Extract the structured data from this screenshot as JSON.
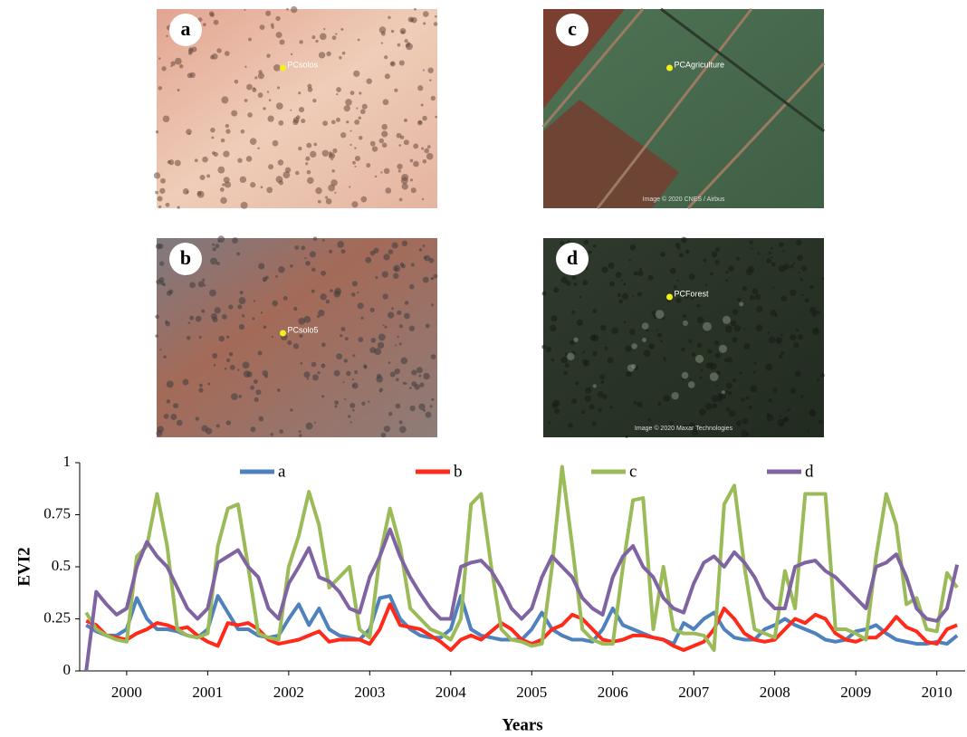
{
  "panels": [
    {
      "label": "a",
      "pin": "PCsolos"
    },
    {
      "label": "c",
      "pin": "PCAgriculture",
      "credit": "Image © 2020 CNES / Airbus"
    },
    {
      "label": "b",
      "pin": "PCsolo5"
    },
    {
      "label": "d",
      "pin": "PCForest",
      "credit": "Image © 2020 Maxar Technologies"
    }
  ],
  "chart_data": {
    "type": "line",
    "xlabel": "Years",
    "ylabel": "EVI2",
    "x": [
      1999.5,
      1999.625,
      1999.75,
      1999.875,
      2000,
      2000.125,
      2000.25,
      2000.375,
      2000.5,
      2000.625,
      2000.75,
      2000.875,
      2001,
      2001.125,
      2001.25,
      2001.375,
      2001.5,
      2001.625,
      2001.75,
      2001.875,
      2002,
      2002.125,
      2002.25,
      2002.375,
      2002.5,
      2002.625,
      2002.75,
      2002.875,
      2003,
      2003.125,
      2003.25,
      2003.375,
      2003.5,
      2003.625,
      2003.75,
      2003.875,
      2004,
      2004.125,
      2004.25,
      2004.375,
      2004.5,
      2004.625,
      2004.75,
      2004.875,
      2005,
      2005.125,
      2005.25,
      2005.375,
      2005.5,
      2005.625,
      2005.75,
      2005.875,
      2006,
      2006.125,
      2006.25,
      2006.375,
      2006.5,
      2006.625,
      2006.75,
      2006.875,
      2007,
      2007.125,
      2007.25,
      2007.375,
      2007.5,
      2007.625,
      2007.75,
      2007.875,
      2008,
      2008.125,
      2008.25,
      2008.375,
      2008.5,
      2008.625,
      2008.75,
      2008.875,
      2009,
      2009.125,
      2009.25,
      2009.375,
      2009.5,
      2009.625,
      2009.75,
      2009.875,
      2010,
      2010.125,
      2010.25
    ],
    "series": [
      {
        "name": "a",
        "color": "#4f81bd",
        "values": [
          0.22,
          0.19,
          0.17,
          0.17,
          0.2,
          0.35,
          0.25,
          0.2,
          0.2,
          0.19,
          0.17,
          0.16,
          0.2,
          0.36,
          0.28,
          0.2,
          0.2,
          0.17,
          0.16,
          0.17,
          0.25,
          0.32,
          0.22,
          0.3,
          0.2,
          0.17,
          0.16,
          0.15,
          0.2,
          0.35,
          0.36,
          0.25,
          0.2,
          0.17,
          0.16,
          0.16,
          0.2,
          0.36,
          0.2,
          0.17,
          0.16,
          0.15,
          0.15,
          0.15,
          0.2,
          0.28,
          0.2,
          0.17,
          0.15,
          0.15,
          0.14,
          0.2,
          0.3,
          0.22,
          0.2,
          0.18,
          0.16,
          0.15,
          0.13,
          0.23,
          0.2,
          0.25,
          0.28,
          0.2,
          0.16,
          0.15,
          0.15,
          0.2,
          0.22,
          0.25,
          0.22,
          0.2,
          0.18,
          0.15,
          0.14,
          0.15,
          0.19,
          0.2,
          0.22,
          0.18,
          0.15,
          0.14,
          0.13,
          0.13,
          0.14,
          0.13,
          0.17
        ]
      },
      {
        "name": "b",
        "color": "#ff2a1a",
        "values": [
          0.24,
          0.22,
          0.17,
          0.16,
          0.15,
          0.18,
          0.2,
          0.23,
          0.22,
          0.2,
          0.21,
          0.17,
          0.14,
          0.12,
          0.23,
          0.22,
          0.23,
          0.2,
          0.15,
          0.13,
          0.14,
          0.15,
          0.17,
          0.19,
          0.14,
          0.15,
          0.15,
          0.15,
          0.13,
          0.2,
          0.32,
          0.22,
          0.21,
          0.2,
          0.17,
          0.14,
          0.1,
          0.15,
          0.17,
          0.15,
          0.19,
          0.23,
          0.2,
          0.15,
          0.13,
          0.15,
          0.2,
          0.22,
          0.27,
          0.25,
          0.2,
          0.15,
          0.14,
          0.15,
          0.17,
          0.17,
          0.16,
          0.15,
          0.12,
          0.1,
          0.12,
          0.14,
          0.2,
          0.3,
          0.25,
          0.18,
          0.15,
          0.14,
          0.15,
          0.2,
          0.25,
          0.23,
          0.27,
          0.25,
          0.18,
          0.15,
          0.14,
          0.16,
          0.16,
          0.2,
          0.26,
          0.21,
          0.19,
          0.14,
          0.13,
          0.2,
          0.22
        ]
      },
      {
        "name": "c",
        "color": "#9bbb59",
        "values": [
          0.28,
          0.2,
          0.17,
          0.15,
          0.14,
          0.55,
          0.6,
          0.85,
          0.6,
          0.2,
          0.17,
          0.16,
          0.18,
          0.6,
          0.78,
          0.8,
          0.5,
          0.18,
          0.16,
          0.15,
          0.5,
          0.65,
          0.86,
          0.7,
          0.4,
          0.45,
          0.5,
          0.2,
          0.16,
          0.55,
          0.78,
          0.6,
          0.3,
          0.25,
          0.2,
          0.18,
          0.15,
          0.25,
          0.8,
          0.85,
          0.5,
          0.2,
          0.15,
          0.14,
          0.12,
          0.13,
          0.5,
          0.98,
          0.6,
          0.2,
          0.15,
          0.13,
          0.13,
          0.5,
          0.82,
          0.83,
          0.2,
          0.5,
          0.2,
          0.18,
          0.18,
          0.17,
          0.1,
          0.8,
          0.89,
          0.5,
          0.2,
          0.18,
          0.16,
          0.48,
          0.3,
          0.85,
          0.85,
          0.85,
          0.2,
          0.2,
          0.18,
          0.15,
          0.55,
          0.85,
          0.7,
          0.32,
          0.35,
          0.2,
          0.19,
          0.47,
          0.4
        ]
      },
      {
        "name": "d",
        "color": "#8064a2",
        "values": [
          0,
          0.38,
          0.32,
          0.27,
          0.3,
          0.5,
          0.62,
          0.55,
          0.5,
          0.4,
          0.3,
          0.25,
          0.3,
          0.52,
          0.55,
          0.58,
          0.5,
          0.45,
          0.3,
          0.25,
          0.42,
          0.5,
          0.59,
          0.45,
          0.43,
          0.38,
          0.3,
          0.28,
          0.45,
          0.55,
          0.68,
          0.55,
          0.45,
          0.37,
          0.3,
          0.25,
          0.25,
          0.5,
          0.52,
          0.53,
          0.48,
          0.4,
          0.3,
          0.25,
          0.3,
          0.45,
          0.55,
          0.5,
          0.45,
          0.35,
          0.3,
          0.27,
          0.45,
          0.55,
          0.6,
          0.5,
          0.45,
          0.35,
          0.3,
          0.28,
          0.42,
          0.52,
          0.55,
          0.5,
          0.57,
          0.52,
          0.45,
          0.35,
          0.3,
          0.3,
          0.5,
          0.52,
          0.53,
          0.48,
          0.45,
          0.4,
          0.35,
          0.3,
          0.5,
          0.52,
          0.56,
          0.45,
          0.3,
          0.25,
          0.24,
          0.3,
          0.51
        ]
      }
    ],
    "xlim": [
      1999.42,
      2010.35
    ],
    "xticks": [
      2000,
      2001,
      2002,
      2003,
      2004,
      2005,
      2006,
      2007,
      2008,
      2009,
      2010
    ],
    "ylim": [
      0,
      1
    ],
    "yticks": [
      0,
      0.25,
      0.5,
      0.75,
      1
    ],
    "grid": false,
    "legend": "top"
  }
}
